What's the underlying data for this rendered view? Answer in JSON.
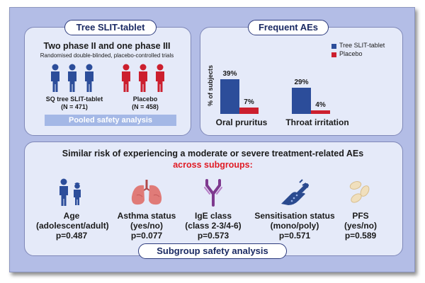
{
  "colors": {
    "frame_bg": "#b3bde6",
    "panel_bg": "#e5eaf9",
    "slit_blue": "#2c4d9a",
    "placebo_red": "#cc1f2e",
    "accent_red": "#e01b24",
    "pooled_bar": "#a4b8e6"
  },
  "top_left": {
    "pill": "Tree SLIT-tablet",
    "title": "Two phase II and one phase III",
    "subtitle": "Randomised double-blinded, placebo-controlled trials",
    "group1": {
      "label": "SQ tree SLIT-tablet",
      "n": "(N = 471)"
    },
    "group2": {
      "label": "Placebo",
      "n": "(N = 458)"
    },
    "pooled": "Pooled safety analysis"
  },
  "top_right": {
    "pill": "Frequent AEs",
    "chart_data": {
      "type": "bar",
      "categories": [
        "Oral pruritus",
        "Throat irritation"
      ],
      "series": [
        {
          "name": "Tree SLIT-tablet",
          "values": [
            39,
            29
          ],
          "color": "#2c4d9a"
        },
        {
          "name": "Placebo",
          "values": [
            7,
            4
          ],
          "color": "#cc1f2e"
        }
      ],
      "ylabel": "% of subjects",
      "value_labels": [
        [
          "39%",
          "29%"
        ],
        [
          "7%",
          "4%"
        ]
      ],
      "legend_position": "top-right"
    }
  },
  "bottom": {
    "headline": "Similar risk of experiencing a moderate or severe treatment-related AEs",
    "headline_red": "across subgroups:",
    "items": [
      {
        "icon": "adult-adolescent-icon",
        "line1": "Age",
        "line2": "(adolescent/adult)",
        "p": "p=0.487"
      },
      {
        "icon": "lungs-icon",
        "line1": "Asthma status",
        "line2": "(yes/no)",
        "p": "p=0.077"
      },
      {
        "icon": "antibody-icon",
        "line1": "IgE class",
        "line2": "(class 2-3/4-6)",
        "p": "p=0.573"
      },
      {
        "icon": "allergy-test-hand-icon",
        "line1": "Sensitisation status",
        "line2": "(mono/poly)",
        "p": "p=0.571"
      },
      {
        "icon": "tablets-icon",
        "line1": "PFS",
        "line2": "(yes/no)",
        "p": "p=0.589"
      }
    ],
    "pill": "Subgroup safety analysis"
  }
}
